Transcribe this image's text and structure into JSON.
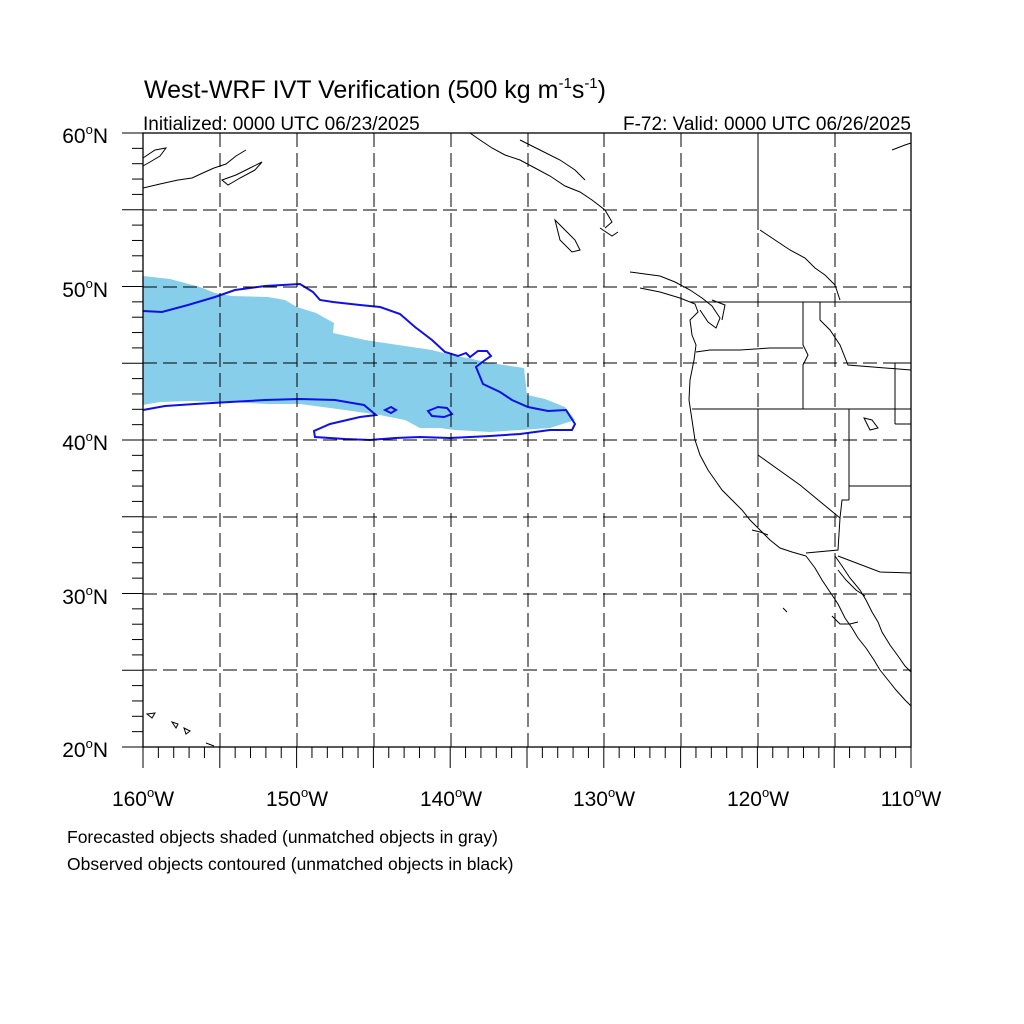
{
  "title_main": "West-WRF IVT Verification (500 kg m",
  "title_exp1": "-1",
  "title_mid": "s",
  "title_exp2": "-1",
  "title_end": ")",
  "initialized": "Initialized: 0000 UTC 06/23/2025",
  "valid": "F-72: Valid: 0000 UTC 06/26/2025",
  "footer_line1": "Forecasted objects shaded (unmatched objects in gray)",
  "footer_line2": "Observed objects contoured (unmatched objects in black)",
  "lat_labels": [
    {
      "num": "60",
      "dir": "N"
    },
    {
      "num": "50",
      "dir": "N"
    },
    {
      "num": "40",
      "dir": "N"
    },
    {
      "num": "30",
      "dir": "N"
    },
    {
      "num": "20",
      "dir": "N"
    }
  ],
  "lon_labels": [
    {
      "num": "160",
      "dir": "W"
    },
    {
      "num": "150",
      "dir": "W"
    },
    {
      "num": "140",
      "dir": "W"
    },
    {
      "num": "130",
      "dir": "W"
    },
    {
      "num": "120",
      "dir": "W"
    },
    {
      "num": "110",
      "dir": "W"
    }
  ],
  "colors": {
    "forecast_fill": "#87ceeb",
    "observed_contour": "#1010e8",
    "grid": "#000000"
  }
}
